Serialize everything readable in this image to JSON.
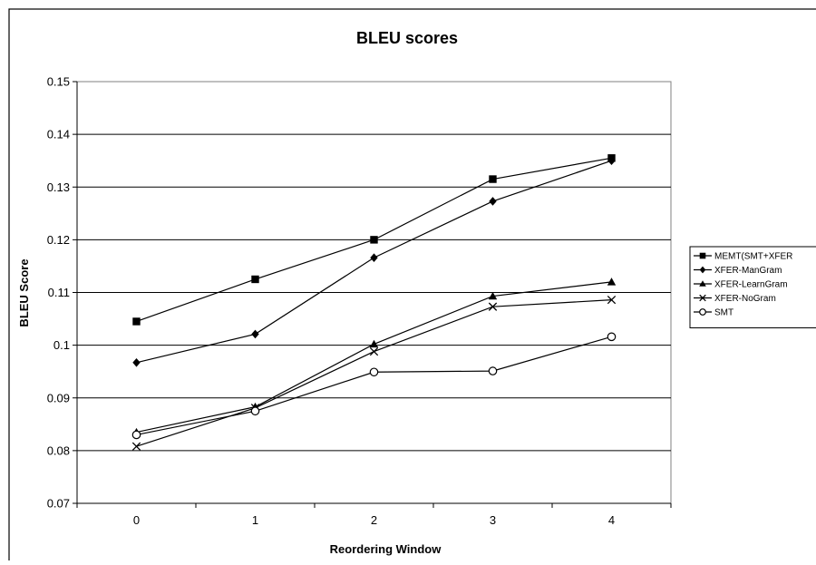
{
  "chart_data": {
    "type": "line",
    "title": "BLEU scores",
    "xlabel": "Reordering Window",
    "ylabel": "BLEU Score",
    "x": [
      0,
      1,
      2,
      3,
      4
    ],
    "x_tick_labels": [
      "0",
      "1",
      "2",
      "3",
      "4"
    ],
    "ylim": [
      0.07,
      0.15
    ],
    "y_ticks": [
      0.07,
      0.08,
      0.09,
      0.1,
      0.11,
      0.12,
      0.13,
      0.14,
      0.15
    ],
    "y_tick_labels": [
      "0.07",
      "0.08",
      "0.09",
      "0.1",
      "0.11",
      "0.12",
      "0.13",
      "0.14",
      "0.15"
    ],
    "grid": "horizontal",
    "legend_position": "right",
    "series": [
      {
        "name": "MEMT(SMT+XFER",
        "marker": "square",
        "color": "#000000",
        "values": [
          0.1045,
          0.1125,
          0.12,
          0.1315,
          0.1355
        ]
      },
      {
        "name": "XFER-ManGram",
        "marker": "diamond",
        "color": "#000000",
        "values": [
          0.0967,
          0.1021,
          0.1166,
          0.1273,
          0.135
        ]
      },
      {
        "name": "XFER-LearnGram",
        "marker": "triangle",
        "color": "#000000",
        "values": [
          0.0835,
          0.0883,
          0.1002,
          0.1093,
          0.112
        ]
      },
      {
        "name": "XFER-NoGram",
        "marker": "x",
        "color": "#000000",
        "values": [
          0.0808,
          0.0881,
          0.0988,
          0.1073,
          0.1086
        ]
      },
      {
        "name": "SMT",
        "marker": "circle",
        "color": "#000000",
        "values": [
          0.083,
          0.0875,
          0.0949,
          0.0951,
          0.1016
        ]
      }
    ]
  }
}
